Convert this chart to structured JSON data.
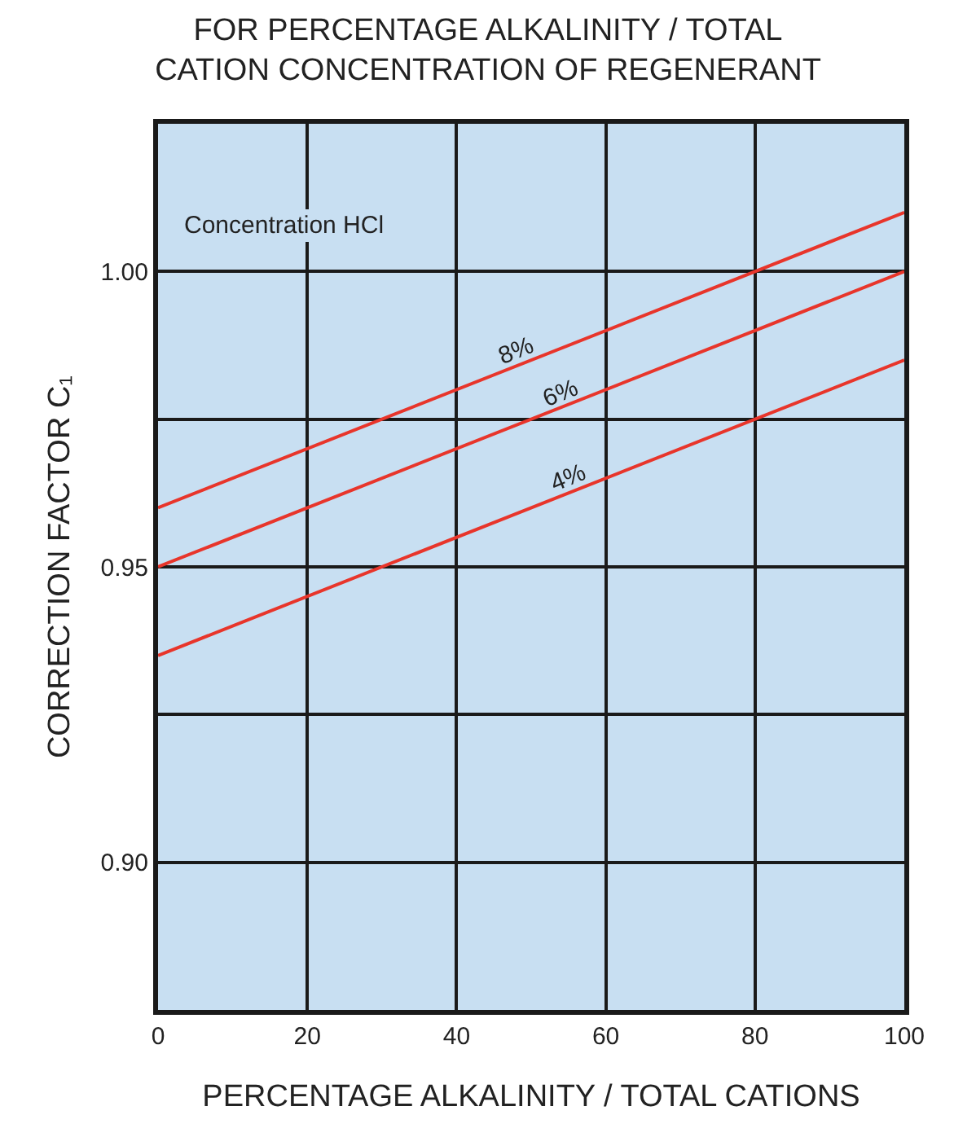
{
  "chart_data": {
    "type": "line",
    "title": "FOR PERCENTAGE ALKALINITY / TOTAL\nCATION CONCENTRATION OF REGENERANT",
    "xlabel": "PERCENTAGE ALKALINITY / TOTAL CATIONS",
    "ylabel": "CORRECTION FACTOR C₁",
    "x": [
      0,
      100
    ],
    "series": [
      {
        "color": "#e8352b",
        "values": [
          0.96,
          1.01
        ]
      },
      {
        "color": "#e8352b",
        "values": [
          0.95,
          1.0
        ]
      },
      {
        "color": "#e8352b",
        "values": [
          0.935,
          0.985
        ]
      }
    ],
    "annotations": [
      "Concentration HCl",
      {
        "text": "8%",
        "x": 48,
        "y": 0.984
      },
      {
        "text": "6%",
        "x": 54,
        "y": 0.977
      },
      {
        "text": "4%",
        "x": 55,
        "y": 0.9625
      }
    ],
    "xlim": [
      0,
      100
    ],
    "xticks": [
      0,
      20,
      40,
      60,
      80,
      100
    ],
    "ylim": [
      0.875,
      1.025
    ],
    "yticks": [
      {
        "value": 0.9,
        "label": "0.90"
      },
      {
        "value": 0.925,
        "label": null
      },
      {
        "value": 0.95,
        "label": "0.95"
      },
      {
        "value": 0.975,
        "label": null
      },
      {
        "value": 1.0,
        "label": "1.00"
      }
    ],
    "grid": true,
    "marker": "none",
    "line_style": "solid"
  }
}
